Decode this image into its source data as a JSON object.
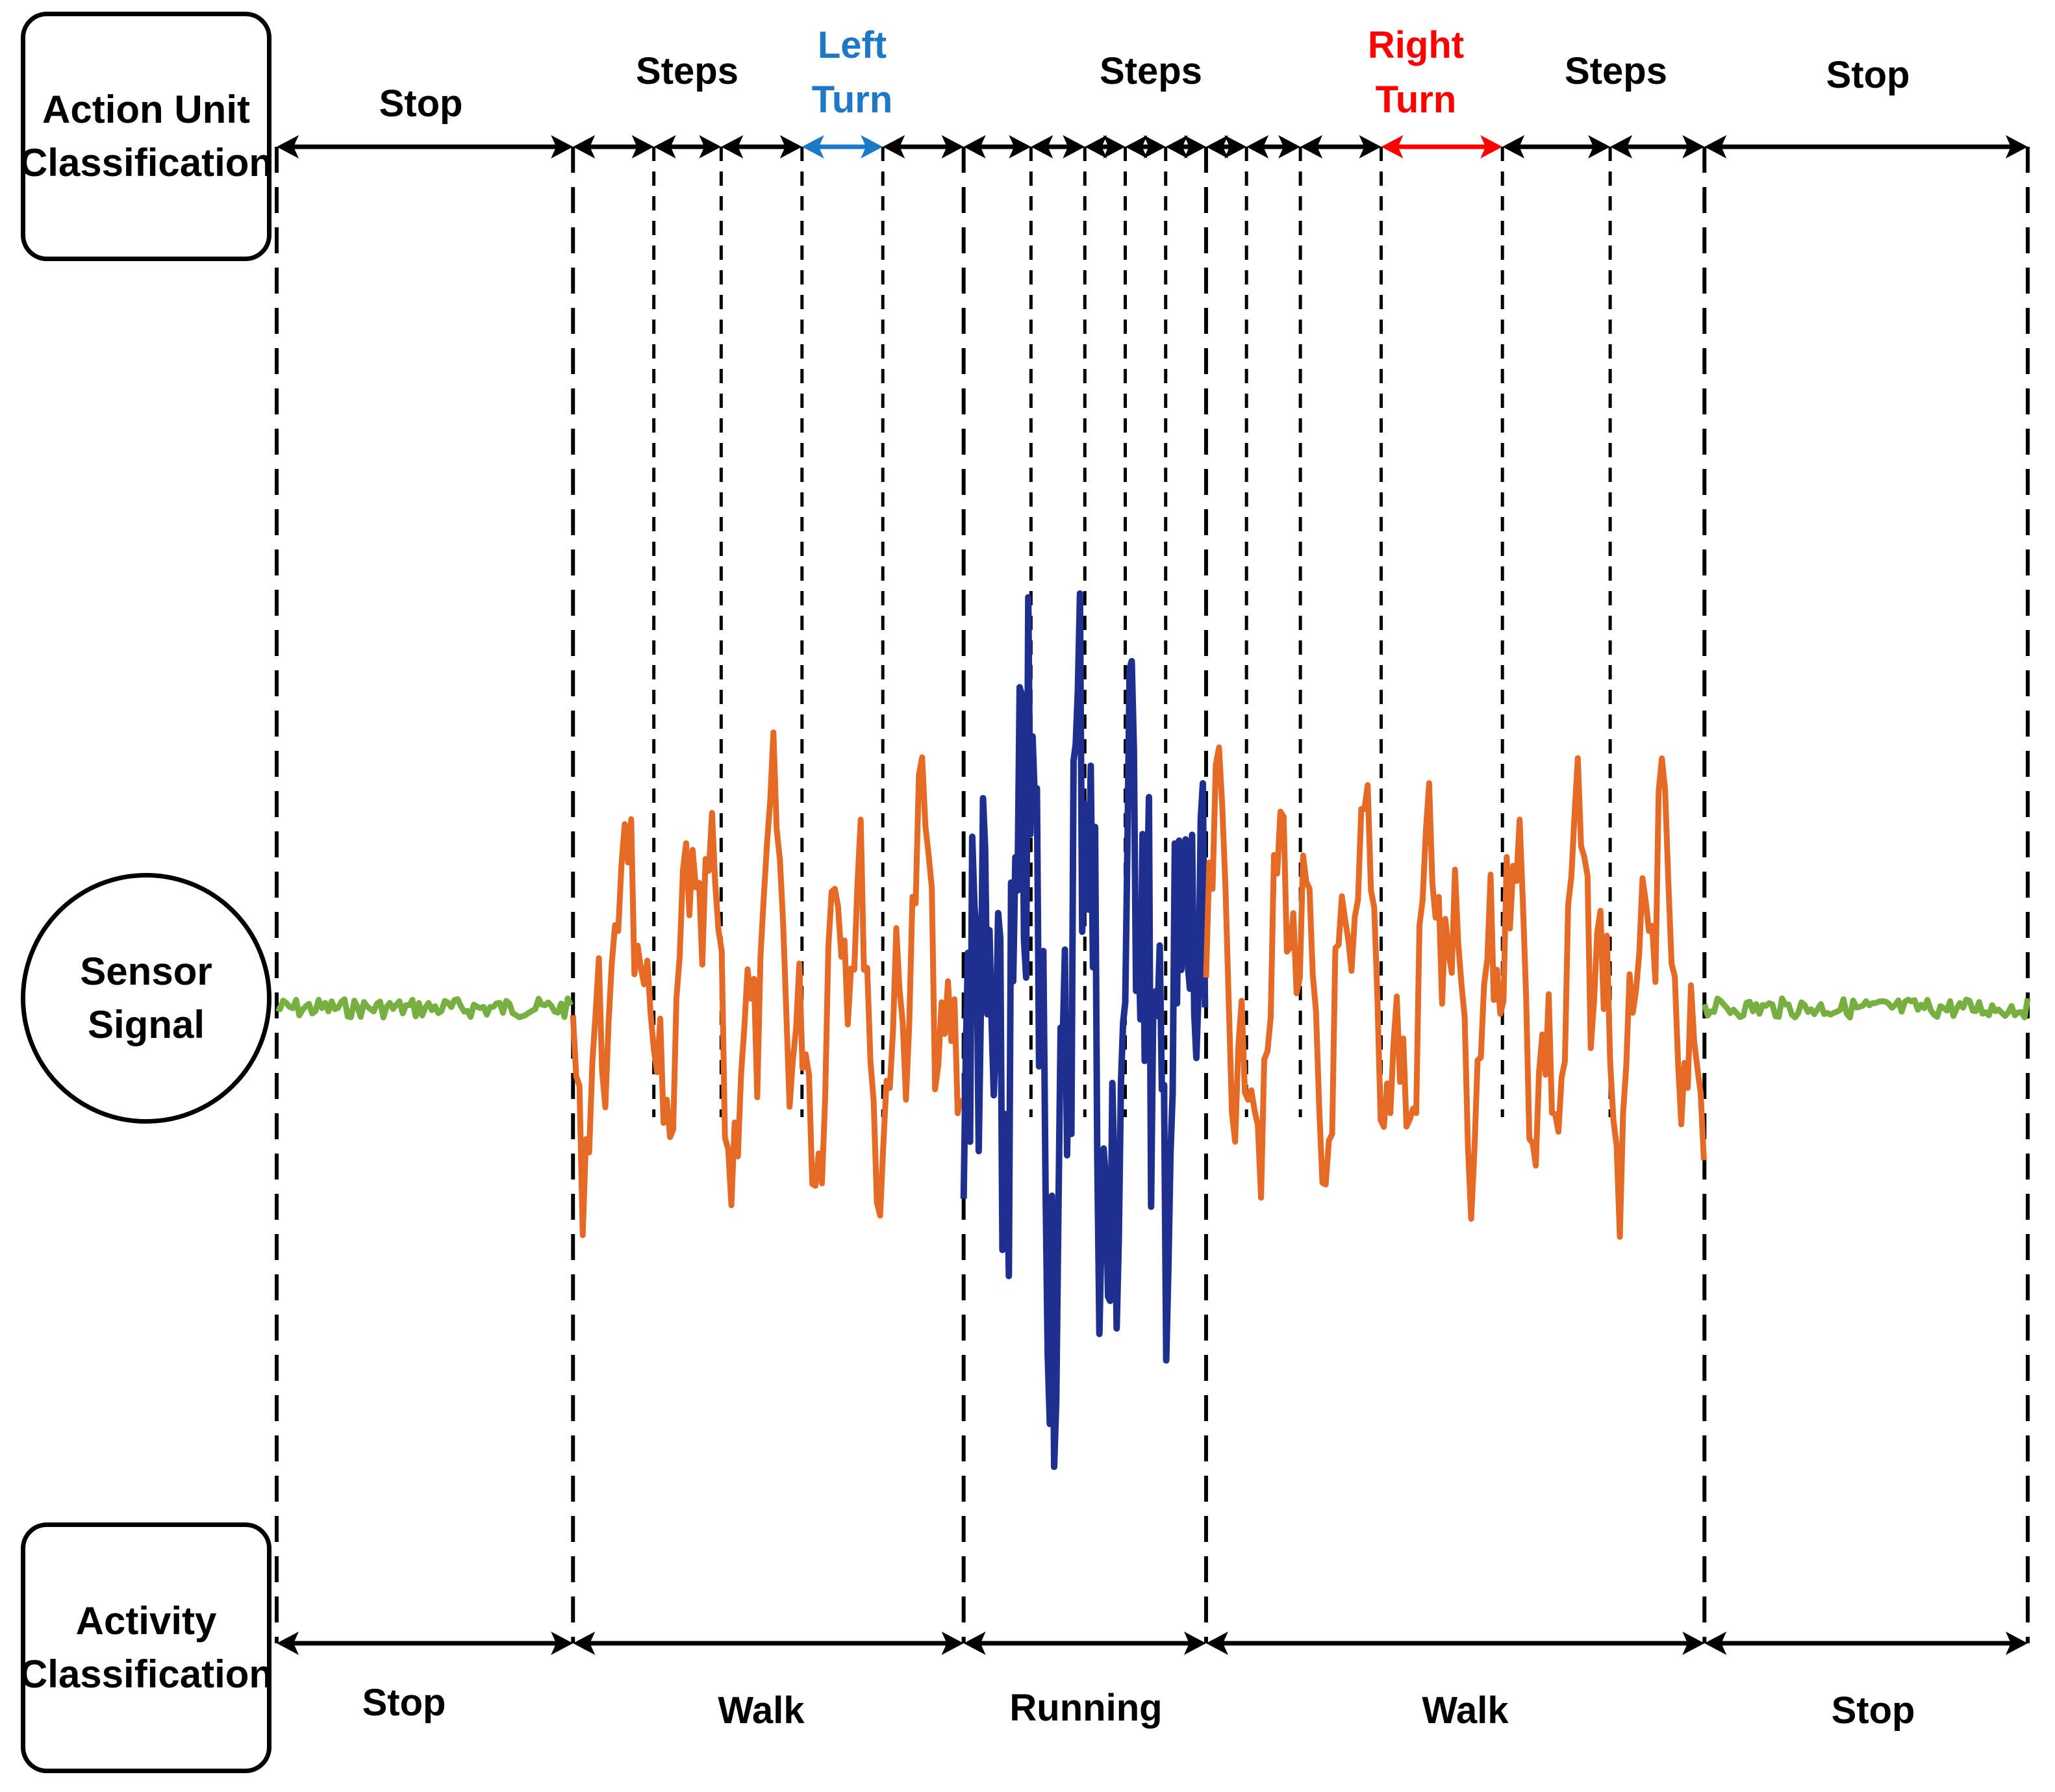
{
  "boxes": {
    "action_unit": [
      "Action Unit",
      "Classification"
    ],
    "sensor": [
      "Sensor",
      "Signal"
    ],
    "activity": [
      "Activity",
      "Classification"
    ]
  },
  "action_units": {
    "stop_left": "Stop",
    "steps_1": "Steps",
    "left_turn": [
      "Left",
      "Turn"
    ],
    "steps_2": "Steps",
    "right_turn": [
      "Right",
      "Turn"
    ],
    "steps_3": "Steps",
    "stop_right": "Stop"
  },
  "activities": {
    "stop_left": "Stop",
    "walk_1": "Walk",
    "running": "Running",
    "walk_2": "Walk",
    "stop_right": "Stop"
  },
  "colors": {
    "stop_signal": "#77b041",
    "walk_signal": "#e46a25",
    "run_signal": "#1f2f8f",
    "left_turn": "#1e78c8",
    "right_turn": "#ff0000",
    "line": "#000000"
  },
  "segments": {
    "activity_boundaries_s": [
      0,
      11,
      25.5,
      34.5,
      53,
      65
    ],
    "action_boundaries_s": [
      0,
      11,
      14,
      16.5,
      19.5,
      22.5,
      25.5,
      28,
      30,
      31.5,
      33,
      34.5,
      36,
      38,
      41,
      45.5,
      49.5,
      53,
      65
    ],
    "left_turn_s": [
      19.5,
      22.5
    ],
    "right_turn_s": [
      41,
      45.5
    ]
  }
}
